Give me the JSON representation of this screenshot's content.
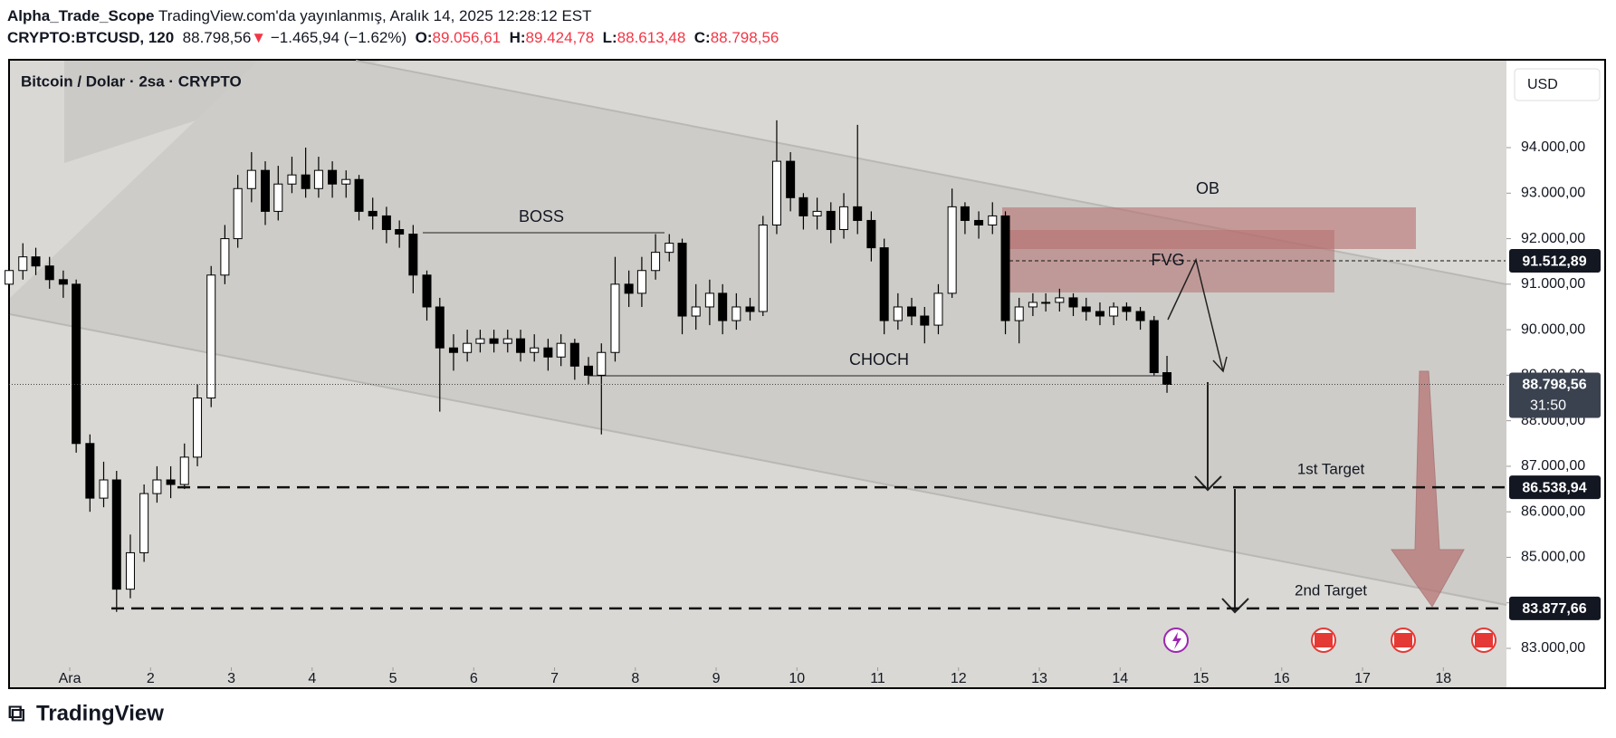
{
  "header": {
    "author": "Alpha_Trade_Scope",
    "published": "TradingView.com'da yayınlanmış, Aralık 14, 2025 12:28:12 EST",
    "symbol": "CRYPTO:BTCUSD, 120",
    "price": "88.798,56",
    "arrow": "▼",
    "change": "−1.465,94 (−1.62%)",
    "ohlc": [
      {
        "key": "O:",
        "value": "89.056,61"
      },
      {
        "key": "H:",
        "value": "89.424,78"
      },
      {
        "key": "L:",
        "value": "88.613,48"
      },
      {
        "key": "C:",
        "value": "88.798,56"
      }
    ]
  },
  "footer": {
    "logo": "TradingView"
  },
  "currency": "USD",
  "chart_data": {
    "type": "candlestick",
    "title": "Bitcoin / Dolar · 2sa · CRYPTO",
    "x": [
      0.25,
      0.42,
      0.58,
      0.75,
      0.92,
      1.08,
      1.25,
      1.42,
      1.58,
      1.75,
      1.92,
      2.08,
      2.25,
      2.42,
      2.58,
      2.75,
      2.92,
      3.08,
      3.25,
      3.42,
      3.58,
      3.75,
      3.92,
      4.08,
      4.25,
      4.42,
      4.58,
      4.75,
      4.92,
      5.08,
      5.25,
      5.42,
      5.58,
      5.75,
      5.92,
      6.08,
      6.25,
      6.42,
      6.58,
      6.75,
      6.92,
      7.08,
      7.25,
      7.42,
      7.58,
      7.75,
      7.92,
      8.08,
      8.25,
      8.42,
      8.58,
      8.75,
      8.92,
      9.08,
      9.25,
      9.42,
      9.58,
      9.75,
      9.92,
      10.08,
      10.25,
      10.42,
      10.58,
      10.75,
      10.92,
      11.08,
      11.25,
      11.42,
      11.58,
      11.75,
      11.92,
      12.08,
      12.25,
      12.42,
      12.58,
      12.75,
      12.92,
      13.08,
      13.25,
      13.42,
      13.58,
      13.75,
      13.92,
      14.08,
      14.25,
      14.42,
      14.58
    ],
    "open": [
      91000,
      91300,
      91600,
      91400,
      91100,
      91000,
      87500,
      86300,
      86700,
      84300,
      85100,
      86400,
      86700,
      86600,
      87200,
      88500,
      91200,
      92000,
      93100,
      93500,
      92600,
      93200,
      93400,
      93100,
      93500,
      93200,
      93300,
      92600,
      92500,
      92200,
      92100,
      91200,
      90500,
      89600,
      89500,
      89700,
      89800,
      89700,
      89800,
      89500,
      89600,
      89400,
      89700,
      89200,
      89000,
      89500,
      91000,
      90800,
      91300,
      91700,
      91900,
      90300,
      90500,
      90800,
      90200,
      90500,
      90400,
      92300,
      93700,
      92900,
      92500,
      92600,
      92200,
      92700,
      92400,
      91800,
      90200,
      90500,
      90300,
      90100,
      90800,
      92700,
      92400,
      92300,
      92500,
      90200,
      90500,
      90600,
      90600,
      90700,
      90500,
      90400,
      90300,
      90500,
      90400,
      90200,
      89056.61
    ],
    "high": [
      91500,
      91900,
      91800,
      91600,
      91300,
      91100,
      87700,
      87100,
      86900,
      85500,
      86600,
      87000,
      87000,
      87500,
      88800,
      91400,
      92300,
      93400,
      93900,
      93700,
      93600,
      93800,
      94000,
      93800,
      93700,
      93500,
      93400,
      92900,
      92700,
      92400,
      92300,
      91300,
      90700,
      89900,
      90000,
      90000,
      90000,
      90000,
      90000,
      89900,
      89800,
      89900,
      89800,
      89400,
      89700,
      91600,
      91300,
      91600,
      92100,
      92100,
      92000,
      91000,
      91100,
      91000,
      90800,
      90700,
      92500,
      94600,
      93900,
      93000,
      92900,
      92800,
      93000,
      94500,
      92600,
      92000,
      90800,
      90700,
      90500,
      91000,
      93100,
      92800,
      92600,
      92800,
      92600,
      90700,
      90800,
      90800,
      90900,
      90800,
      90700,
      90600,
      90600,
      90600,
      90500,
      90300,
      89424.78
    ],
    "low": [
      90800,
      91100,
      91200,
      90900,
      90700,
      87300,
      86000,
      86100,
      83800,
      84100,
      84900,
      86200,
      86300,
      86500,
      87000,
      88300,
      91000,
      91800,
      92800,
      92300,
      92400,
      93000,
      92900,
      92900,
      92900,
      92900,
      92400,
      92200,
      91900,
      91800,
      90800,
      90200,
      88200,
      89100,
      89300,
      89500,
      89500,
      89500,
      89300,
      89300,
      89100,
      89200,
      88900,
      88800,
      87700,
      89300,
      90500,
      90500,
      91100,
      91500,
      89900,
      90000,
      90100,
      89900,
      90000,
      90200,
      90300,
      92100,
      92600,
      92200,
      92200,
      91900,
      92000,
      92100,
      91500,
      89900,
      90000,
      90100,
      89700,
      89900,
      90700,
      92100,
      92000,
      92100,
      89900,
      89700,
      90300,
      90400,
      90400,
      90300,
      90200,
      90100,
      90100,
      90200,
      90000,
      89000,
      88613.48
    ],
    "close": [
      91300,
      91600,
      91400,
      91100,
      91000,
      87500,
      86300,
      86700,
      84300,
      85100,
      86400,
      86700,
      86600,
      87200,
      88500,
      91200,
      92000,
      93100,
      93500,
      92600,
      93200,
      93400,
      93100,
      93500,
      93200,
      93300,
      92600,
      92500,
      92200,
      92100,
      91200,
      90500,
      89600,
      89500,
      89700,
      89800,
      89700,
      89800,
      89500,
      89600,
      89400,
      89700,
      89200,
      89000,
      89500,
      91000,
      90800,
      91300,
      91700,
      91900,
      90300,
      90500,
      90800,
      90200,
      90500,
      90400,
      92300,
      93700,
      92900,
      92500,
      92600,
      92200,
      92700,
      92400,
      91800,
      90200,
      90500,
      90300,
      90100,
      90800,
      92700,
      92400,
      92300,
      92500,
      90200,
      90500,
      90600,
      90600,
      90700,
      90500,
      90400,
      90300,
      90500,
      90400,
      90200,
      89056.61,
      88798.56
    ],
    "up_color": "#ffffff",
    "down_color": "#000000",
    "xlim": [
      0.249,
      18.77
    ],
    "xticks": [
      {
        "value": 1,
        "label": "Ara"
      },
      2,
      3,
      4,
      5,
      6,
      7,
      8,
      9,
      10,
      11,
      12,
      13,
      14,
      15,
      16,
      17,
      18
    ],
    "ylim": [
      82622,
      95930
    ],
    "yticks": [
      {
        "value": 83000,
        "label": "83.000,00"
      },
      {
        "value": 84000,
        "label": "84.000,00"
      },
      {
        "value": 85000,
        "label": "85.000,00"
      },
      {
        "value": 86000,
        "label": "86.000,00"
      },
      {
        "value": 87000,
        "label": "87.000,00"
      },
      {
        "value": 88000,
        "label": "88.000,00"
      },
      {
        "value": 89000,
        "label": "89.000,00"
      },
      {
        "value": 90000,
        "label": "90.000,00"
      },
      {
        "value": 91000,
        "label": "91.000,00"
      },
      {
        "value": 92000,
        "label": "92.000,00"
      },
      {
        "value": 93000,
        "label": "93.000,00"
      },
      {
        "value": 94000,
        "label": "94.000,00"
      }
    ],
    "levels": [
      {
        "value": 91512.89,
        "label": "91.512,89"
      },
      {
        "value": 86538.94,
        "label": "86.538,94",
        "text": "1st Target"
      },
      {
        "value": 83877.66,
        "label": "83.877,66",
        "text": "2nd Target"
      }
    ],
    "last_price": {
      "value": 88798.56,
      "label": "88.798,56",
      "countdown": "31:50"
    },
    "annotations": {
      "boss": "BOSS",
      "choch": "CHOCH",
      "ob": "OB",
      "fvg": "FVG"
    }
  }
}
